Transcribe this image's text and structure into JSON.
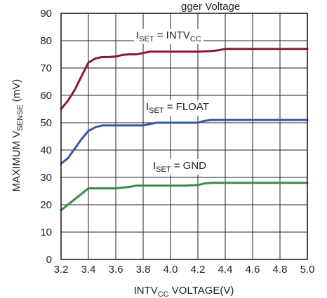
{
  "chart_data": {
    "type": "line",
    "title_fragment": "gger Voltage",
    "xlabel": {
      "main": "INTV",
      "sub": "CC",
      "rest": " VOLTAGE(V)"
    },
    "ylabel": {
      "main": "MAXIMUM V",
      "sub": "SENSE",
      "rest": " (mV)"
    },
    "xlim": [
      3.2,
      5.0
    ],
    "ylim": [
      0,
      90
    ],
    "xticks": [
      "3.2",
      "3.4",
      "3.6",
      "3.8",
      "4.0",
      "4.2",
      "4.4",
      "4.6",
      "4.8",
      "5.0"
    ],
    "yticks": [
      "0",
      "10",
      "20",
      "30",
      "40",
      "50",
      "60",
      "70",
      "80",
      "90"
    ],
    "grid": true,
    "series": [
      {
        "name": "ISET = INTVCC",
        "label": {
          "pre": "I",
          "sub1": "SET",
          "mid": " = INTV",
          "sub2": "CC"
        },
        "color": "#8b1a32",
        "x": [
          3.2,
          3.25,
          3.3,
          3.35,
          3.4,
          3.45,
          3.5,
          3.55,
          3.6,
          3.65,
          3.7,
          3.75,
          3.8,
          3.85,
          3.9,
          3.95,
          4.0,
          4.1,
          4.2,
          4.3,
          4.35,
          4.4,
          4.45,
          4.5,
          4.6,
          4.8,
          5.0
        ],
        "y": [
          55,
          58,
          62,
          67,
          72,
          73.5,
          74,
          74,
          74.2,
          74.8,
          75,
          75,
          75.5,
          76,
          76,
          76,
          76,
          76,
          76,
          76.2,
          76.5,
          77,
          77,
          77,
          77,
          77,
          77
        ]
      },
      {
        "name": "ISET = FLOAT",
        "label": {
          "pre": "I",
          "sub1": "SET",
          "mid": " = FLOAT",
          "sub2": ""
        },
        "color": "#3a55a4",
        "x": [
          3.2,
          3.25,
          3.3,
          3.35,
          3.4,
          3.45,
          3.5,
          3.55,
          3.6,
          3.7,
          3.8,
          3.85,
          3.9,
          4.0,
          4.1,
          4.2,
          4.25,
          4.3,
          4.4,
          4.6,
          4.8,
          5.0
        ],
        "y": [
          35,
          37,
          40.5,
          44,
          47,
          48.3,
          49,
          49,
          49,
          49,
          49,
          49.5,
          50,
          50,
          50,
          50,
          50.7,
          51,
          51,
          51,
          51,
          51
        ]
      },
      {
        "name": "ISET = GND",
        "label": {
          "pre": "I",
          "sub1": "SET",
          "mid": " = GND",
          "sub2": ""
        },
        "color": "#3c8a46",
        "x": [
          3.2,
          3.25,
          3.3,
          3.35,
          3.4,
          3.45,
          3.5,
          3.6,
          3.7,
          3.75,
          3.8,
          3.9,
          4.0,
          4.1,
          4.2,
          4.25,
          4.3,
          4.4,
          4.6,
          4.8,
          5.0
        ],
        "y": [
          18,
          20,
          22,
          24,
          26,
          26,
          26,
          26,
          26.5,
          27,
          27,
          27,
          27,
          27,
          27.2,
          27.8,
          28,
          28,
          28,
          28,
          28
        ]
      }
    ]
  }
}
